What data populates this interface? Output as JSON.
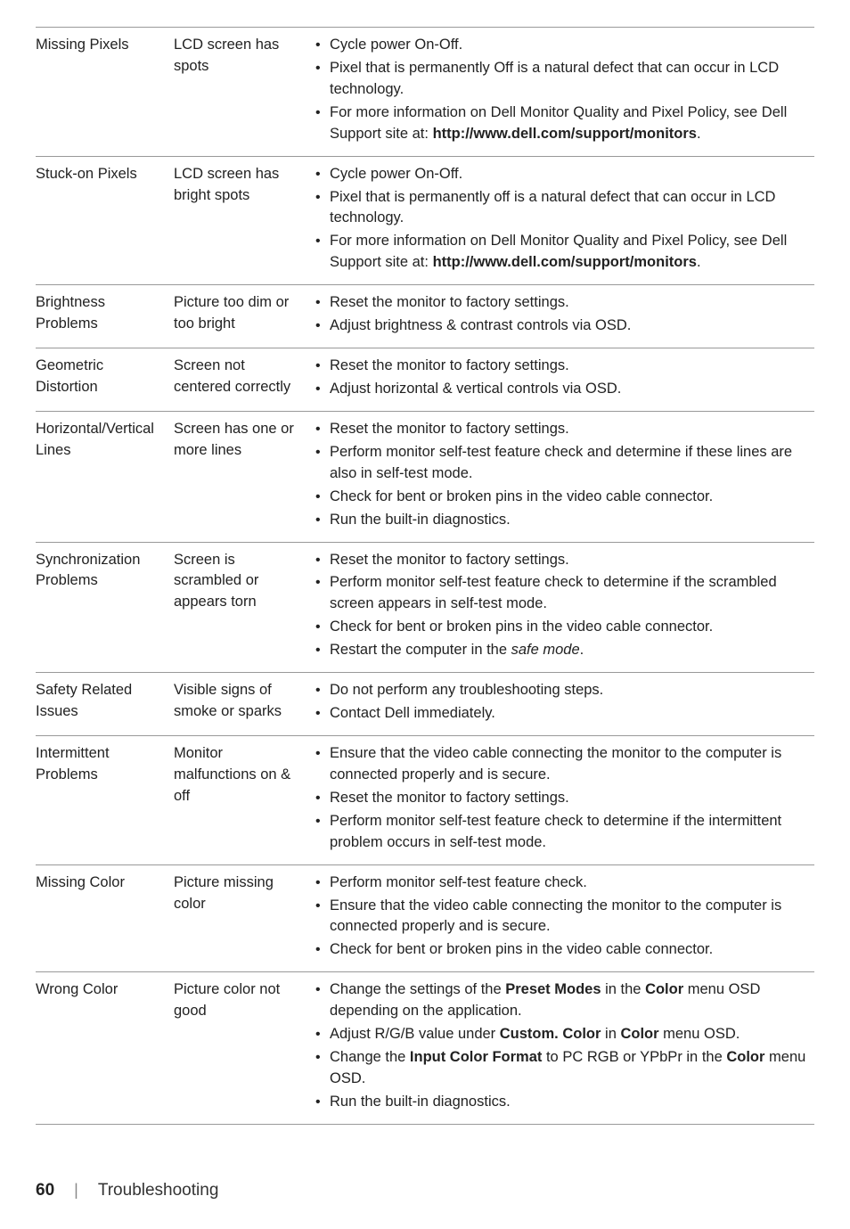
{
  "rows": [
    {
      "symptom": "Missing Pixels",
      "description": "LCD screen has spots",
      "solutions": [
        {
          "text": "Cycle power On-Off."
        },
        {
          "text": "Pixel that is permanently Off is a natural defect that can occur in LCD technology."
        },
        {
          "html": "For more information on Dell Monitor Quality and Pixel Policy, see Dell Support site at: <b>http://www.dell.com/support/monitors</b>."
        }
      ]
    },
    {
      "symptom": "Stuck-on Pixels",
      "description": "LCD screen has bright spots",
      "solutions": [
        {
          "text": "Cycle power On-Off."
        },
        {
          "text": "Pixel that is permanently off is a natural defect that can occur in LCD technology."
        },
        {
          "html": "For more information on Dell Monitor Quality and Pixel Policy, see Dell Support site at: <b>http://www.dell.com/support/monitors</b>."
        }
      ]
    },
    {
      "symptom": "Brightness Problems",
      "description": "Picture too dim or too bright",
      "solutions": [
        {
          "text": "Reset the monitor to factory settings."
        },
        {
          "text": "Adjust brightness & contrast controls via OSD."
        }
      ]
    },
    {
      "symptom": "Geometric Distortion",
      "description": "Screen not centered correctly",
      "solutions": [
        {
          "text": "Reset the monitor to factory settings."
        },
        {
          "text": "Adjust horizontal & vertical controls via OSD."
        }
      ]
    },
    {
      "symptom": "Horizontal/Vertical Lines",
      "description": "Screen has one or more lines",
      "solutions": [
        {
          "text": "Reset the monitor to factory settings."
        },
        {
          "text": "Perform monitor self-test feature check and determine if these lines are also in self-test mode."
        },
        {
          "text": "Check for bent or broken pins in the video cable connector."
        },
        {
          "text": "Run the built-in diagnostics."
        }
      ]
    },
    {
      "symptom": "Synchronization Problems",
      "description": "Screen is scrambled or appears torn",
      "solutions": [
        {
          "text": "Reset the monitor to factory settings."
        },
        {
          "text": "Perform monitor self-test feature check to determine if the scrambled screen appears in self-test mode."
        },
        {
          "text": "Check for bent or broken pins in the video cable connector."
        },
        {
          "html": "Restart the computer in the <em>safe mode</em>."
        }
      ]
    },
    {
      "symptom": "Safety Related Issues",
      "description": "Visible signs of smoke or sparks",
      "solutions": [
        {
          "text": "Do not perform any troubleshooting steps."
        },
        {
          "text": "Contact Dell immediately."
        }
      ]
    },
    {
      "symptom": "Intermittent Problems",
      "description": "Monitor malfunctions on & off",
      "solutions": [
        {
          "text": "Ensure that the video cable connecting the monitor to the computer is connected properly and is secure."
        },
        {
          "text": "Reset the monitor to factory settings."
        },
        {
          "text": "Perform monitor self-test feature check to determine if the intermittent problem occurs in self-test mode."
        }
      ]
    },
    {
      "symptom": "Missing Color",
      "description": "Picture missing color",
      "solutions": [
        {
          "text": "Perform monitor self-test feature check."
        },
        {
          "text": "Ensure that the video cable connecting the monitor to the computer is connected properly and is secure."
        },
        {
          "text": "Check for bent or broken pins in the video cable connector."
        }
      ]
    },
    {
      "symptom": "Wrong Color",
      "description": "Picture color not good",
      "solutions": [
        {
          "html": "Change the settings of the <b>Preset Modes</b> in the <b>Color</b> menu OSD depending on the application."
        },
        {
          "html": "Adjust R/G/B value under <b>Custom. Color</b> in <b>Color</b> menu OSD."
        },
        {
          "html": "Change the <b>Input Color Format</b> to PC RGB or YPbPr in the <b>Color</b> menu OSD."
        },
        {
          "text": "Run the built-in diagnostics."
        }
      ]
    }
  ],
  "footer": {
    "page": "60",
    "section": "Troubleshooting"
  }
}
